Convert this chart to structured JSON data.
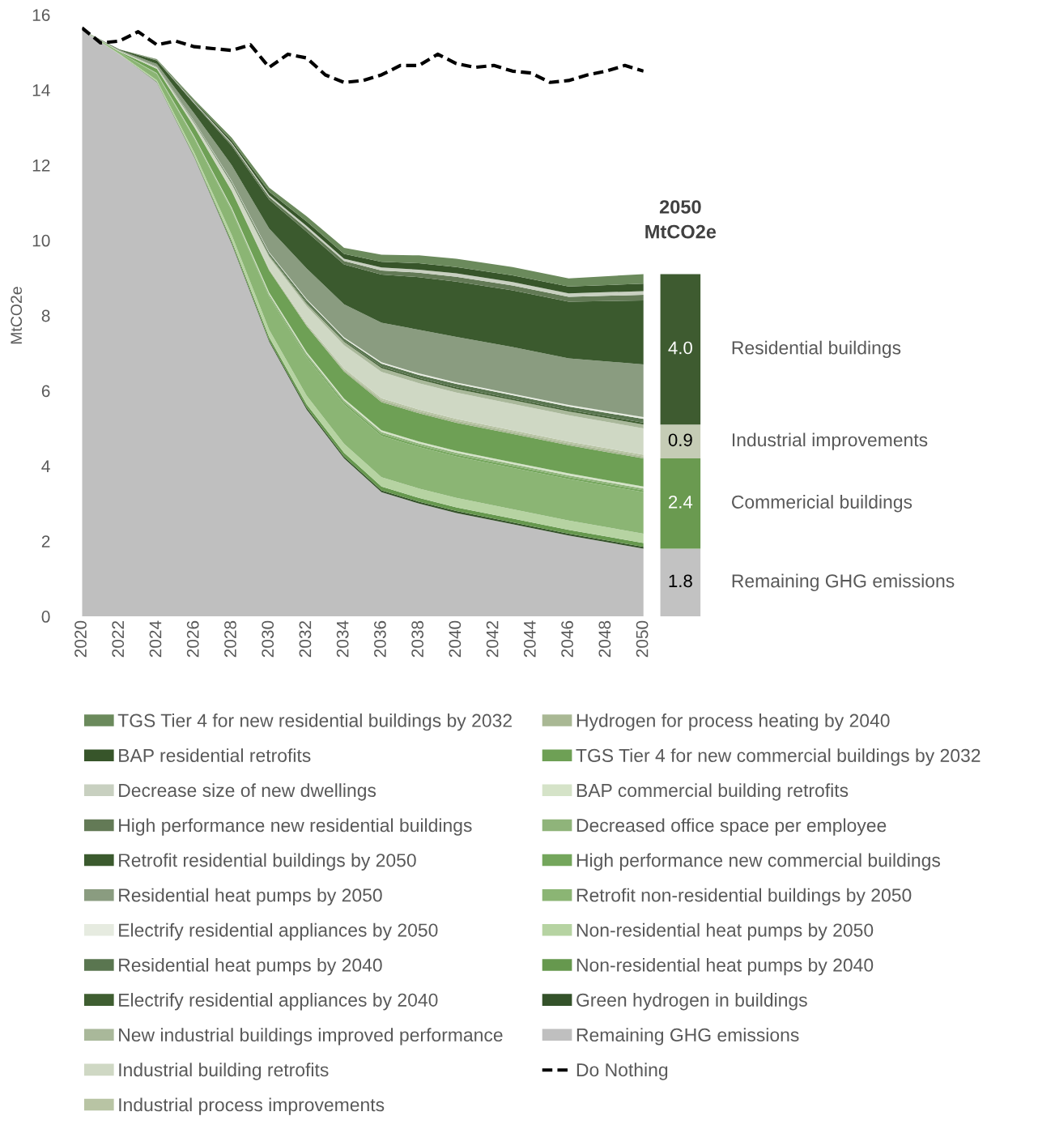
{
  "chart_data": [
    {
      "type": "area",
      "stacked": true,
      "ylabel": "MtCO2e",
      "xlim": [
        2020,
        2050
      ],
      "ylim": [
        0,
        16
      ],
      "xticks": [
        2020,
        2022,
        2024,
        2026,
        2028,
        2030,
        2032,
        2034,
        2036,
        2038,
        2040,
        2042,
        2044,
        2046,
        2048,
        2050
      ],
      "yticks": [
        0,
        2,
        4,
        6,
        8,
        10,
        12,
        14,
        16
      ],
      "grid": false,
      "legend": "bottom",
      "x": [
        2020,
        2022,
        2024,
        2026,
        2028,
        2030,
        2032,
        2034,
        2036,
        2038,
        2040,
        2043,
        2046,
        2050
      ],
      "series": [
        {
          "name": "Remaining GHG emissions",
          "color": "#bfbfbf",
          "values": [
            15.6,
            14.95,
            14.2,
            12.2,
            9.9,
            7.3,
            5.5,
            4.2,
            3.3,
            3.0,
            2.75,
            2.45,
            2.15,
            1.8
          ]
        },
        {
          "name": "Green hydrogen in buildings",
          "color": "#34522a",
          "values": [
            0,
            0,
            0.01,
            0.02,
            0.03,
            0.04,
            0.05,
            0.05,
            0.05,
            0.05,
            0.05,
            0.05,
            0.05,
            0.05
          ]
        },
        {
          "name": "Non-residential heat pumps by 2040",
          "color": "#66984e",
          "values": [
            0,
            0,
            0.01,
            0.03,
            0.06,
            0.08,
            0.09,
            0.1,
            0.1,
            0.1,
            0.1,
            0.1,
            0.1,
            0.1
          ]
        },
        {
          "name": "Non-residential heat pumps by 2050",
          "color": "#b6d3a2",
          "values": [
            0,
            0.01,
            0.04,
            0.08,
            0.15,
            0.2,
            0.23,
            0.24,
            0.25,
            0.25,
            0.25,
            0.25,
            0.25,
            0.25
          ]
        },
        {
          "name": "Retrofit non-residential buildings by 2050",
          "color": "#8bb574",
          "values": [
            0,
            0.04,
            0.16,
            0.37,
            0.64,
            0.87,
            1.01,
            1.05,
            1.1,
            1.1,
            1.1,
            1.1,
            1.1,
            1.1
          ]
        },
        {
          "name": "High performance new commercial buildings",
          "color": "#74a65c",
          "values": [
            0,
            0,
            0.01,
            0.02,
            0.03,
            0.04,
            0.05,
            0.05,
            0.05,
            0.05,
            0.05,
            0.05,
            0.05,
            0.05
          ]
        },
        {
          "name": "Decreased office space per employee",
          "color": "#8fb47a",
          "values": [
            0,
            0,
            0.01,
            0.02,
            0.03,
            0.04,
            0.05,
            0.05,
            0.05,
            0.05,
            0.05,
            0.05,
            0.05,
            0.05
          ]
        },
        {
          "name": "BAP commercial building retrofits",
          "color": "#d5e3c8",
          "values": [
            0,
            0,
            0.01,
            0.02,
            0.03,
            0.04,
            0.05,
            0.05,
            0.05,
            0.05,
            0.05,
            0.05,
            0.05,
            0.05
          ]
        },
        {
          "name": "TGS Tier 4 for new commercial buildings by 2032",
          "color": "#6ea055",
          "values": [
            0,
            0.02,
            0.11,
            0.25,
            0.44,
            0.59,
            0.69,
            0.72,
            0.75,
            0.75,
            0.75,
            0.75,
            0.75,
            0.75
          ]
        },
        {
          "name": "Hydrogen for process heating by 2040",
          "color": "#a9b894",
          "values": [
            0,
            0,
            0,
            0.01,
            0.01,
            0.02,
            0.03,
            0.04,
            0.05,
            0.05,
            0.05,
            0.05,
            0.05,
            0.05
          ]
        },
        {
          "name": "Industrial process improvements",
          "color": "#b8c4a4",
          "values": [
            0,
            0,
            0,
            0.01,
            0.01,
            0.02,
            0.03,
            0.04,
            0.05,
            0.05,
            0.05,
            0.05,
            0.05,
            0.05
          ]
        },
        {
          "name": "Industrial building retrofits",
          "color": "#cfd8c4",
          "values": [
            0,
            0.02,
            0.04,
            0.08,
            0.16,
            0.31,
            0.47,
            0.62,
            0.7,
            0.7,
            0.7,
            0.7,
            0.7,
            0.7
          ]
        },
        {
          "name": "New industrial buildings improved performance",
          "color": "#a9b89a",
          "values": [
            0,
            0,
            0.01,
            0.01,
            0.02,
            0.04,
            0.07,
            0.09,
            0.1,
            0.1,
            0.1,
            0.1,
            0.1,
            0.1
          ]
        },
        {
          "name": "Electrify residential appliances by 2040",
          "color": "#3f5e31",
          "values": [
            0,
            0,
            0,
            0.01,
            0.02,
            0.02,
            0.03,
            0.03,
            0.04,
            0.04,
            0.04,
            0.04,
            0.04,
            0.05
          ]
        },
        {
          "name": "Residential heat pumps by 2040",
          "color": "#5a7650",
          "values": [
            0,
            0,
            0.01,
            0.02,
            0.03,
            0.05,
            0.06,
            0.06,
            0.08,
            0.08,
            0.09,
            0.09,
            0.09,
            0.1
          ]
        },
        {
          "name": "Electrify residential appliances by 2050",
          "color": "#e6ebe0",
          "values": [
            0,
            0,
            0,
            0.01,
            0.02,
            0.02,
            0.03,
            0.03,
            0.04,
            0.04,
            0.04,
            0.04,
            0.04,
            0.05
          ]
        },
        {
          "name": "Residential heat pumps by 2050",
          "color": "#8a9c80",
          "values": [
            0,
            0.02,
            0.07,
            0.21,
            0.42,
            0.63,
            0.81,
            0.88,
            1.05,
            1.16,
            1.21,
            1.24,
            1.24,
            1.4
          ]
        },
        {
          "name": "Retrofit residential buildings by 2050",
          "color": "#3b5a2e",
          "values": [
            0,
            0.02,
            0.09,
            0.26,
            0.51,
            0.77,
            0.98,
            1.06,
            1.28,
            1.4,
            1.47,
            1.51,
            1.51,
            1.7
          ]
        },
        {
          "name": "High performance new residential buildings",
          "color": "#637a56",
          "values": [
            0,
            0,
            0.01,
            0.02,
            0.05,
            0.07,
            0.09,
            0.09,
            0.11,
            0.12,
            0.13,
            0.13,
            0.13,
            0.15
          ]
        },
        {
          "name": "Decrease size of new dwellings",
          "color": "#c8d0c0",
          "values": [
            0,
            0,
            0.01,
            0.02,
            0.03,
            0.05,
            0.06,
            0.06,
            0.08,
            0.08,
            0.09,
            0.09,
            0.09,
            0.1
          ]
        },
        {
          "name": "BAP residential retrofits",
          "color": "#37552a",
          "values": [
            0,
            0,
            0.01,
            0.03,
            0.06,
            0.09,
            0.12,
            0.13,
            0.15,
            0.17,
            0.17,
            0.18,
            0.18,
            0.2
          ]
        },
        {
          "name": "TGS Tier 4 for new residential buildings by 2032",
          "color": "#6b8a5c",
          "values": [
            0,
            0,
            0.01,
            0.04,
            0.08,
            0.11,
            0.14,
            0.16,
            0.19,
            0.21,
            0.22,
            0.22,
            0.22,
            0.25
          ]
        },
        {
          "name": "Do Nothing",
          "type": "line",
          "line_style": "dashed",
          "color": "#000000",
          "x": [
            2020,
            2021,
            2022,
            2023,
            2024,
            2025,
            2026,
            2027,
            2028,
            2029,
            2030,
            2031,
            2032,
            2033,
            2034,
            2035,
            2036,
            2037,
            2038,
            2039,
            2040,
            2041,
            2042,
            2043,
            2044,
            2045,
            2046,
            2047,
            2048,
            2049,
            2050
          ],
          "values": [
            15.65,
            15.25,
            15.3,
            15.55,
            15.2,
            15.3,
            15.15,
            15.1,
            15.05,
            15.2,
            14.6,
            14.95,
            14.85,
            14.4,
            14.2,
            14.25,
            14.4,
            14.65,
            14.65,
            14.95,
            14.7,
            14.6,
            14.65,
            14.5,
            14.45,
            14.2,
            14.25,
            14.4,
            14.5,
            14.65,
            14.5
          ]
        }
      ]
    },
    {
      "type": "bar",
      "stacked": true,
      "title": "2050\nMtCO2e",
      "categories": [
        null
      ],
      "ylim": [
        0,
        16
      ],
      "tick_labels": false,
      "series": [
        {
          "name": "Remaining GHG emissions",
          "color": "#c2c2c2",
          "values": [
            1.8
          ],
          "value_labels": [
            "1.8"
          ]
        },
        {
          "name": "Commericial buildings",
          "color": "#6a9a50",
          "values": [
            2.4
          ],
          "value_labels": [
            "2.4"
          ]
        },
        {
          "name": "Industrial improvements",
          "color": "#c5ccb5",
          "values": [
            0.9
          ],
          "value_labels": [
            "0.9"
          ]
        },
        {
          "name": "Residential buildings",
          "color": "#3e5b30",
          "values": [
            4.0
          ],
          "value_labels": [
            "4.0"
          ]
        }
      ]
    }
  ]
}
